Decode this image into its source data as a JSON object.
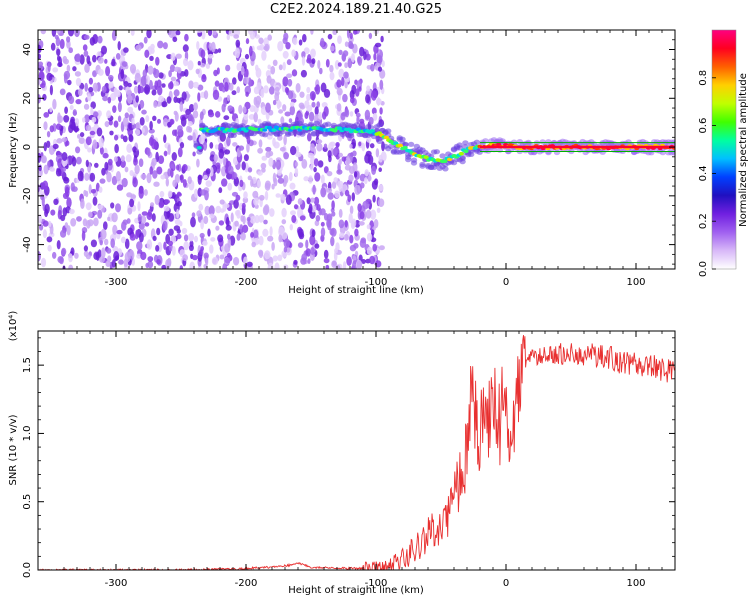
{
  "title": "C2E2.2024.189.21.40.G25",
  "chart_data": [
    {
      "type": "heatmap",
      "xlabel": "Height of straight line (km)",
      "ylabel": "Frequency (Hz)",
      "xlim": [
        -360,
        130
      ],
      "ylim": [
        -50,
        48
      ],
      "xticks": [
        -300,
        -200,
        -100,
        0,
        100
      ],
      "yticks": [
        -40,
        -20,
        0,
        20,
        40
      ],
      "colorbar": {
        "label": "Normalized spectral amplitude",
        "range": [
          0,
          1
        ],
        "ticks": [
          "0.0",
          "0.2",
          "0.4",
          "0.6",
          "0.8"
        ],
        "colors": [
          "#ffffff",
          "#d8b8f8",
          "#a060f0",
          "#7020e0",
          "#2010c0",
          "#0040ff",
          "#00c0ff",
          "#00ffa0",
          "#40ff00",
          "#c0ff00",
          "#ffd000",
          "#ff6000",
          "#ff0020",
          "#ff0080"
        ]
      },
      "ridge": {
        "x": [
          -235,
          -210,
          -180,
          -150,
          -120,
          -100,
          -90,
          -80,
          -70,
          -60,
          -50,
          -40,
          -30,
          -20,
          -10,
          0,
          10,
          30,
          60,
          100,
          130
        ],
        "y": [
          7,
          7,
          7.5,
          7.5,
          7,
          6,
          3,
          0,
          -3,
          -5,
          -6,
          -4,
          -1,
          0,
          1,
          0.5,
          0,
          0,
          0,
          0,
          0
        ]
      },
      "noise_region_end": -100
    },
    {
      "type": "line",
      "xlabel": "Height of straight line (km)",
      "ylabel": "SNR (10 * v/v)",
      "multiplier": "(x10⁴)",
      "xlim": [
        -360,
        130
      ],
      "ylim": [
        0,
        1.75
      ],
      "xticks": [
        -300,
        -200,
        -100,
        0,
        100
      ],
      "yticks": [
        "0.0",
        "0.5",
        "1.0",
        "1.5"
      ],
      "series": [
        {
          "color": "#e83030",
          "x": [
            -360,
            -300,
            -250,
            -200,
            -170,
            -160,
            -150,
            -110,
            -100,
            -90,
            -80,
            -70,
            -60,
            -50,
            -40,
            -35,
            -30,
            -25,
            -20,
            -15,
            -10,
            -5,
            0,
            5,
            10,
            15,
            20,
            30,
            40,
            50,
            60,
            70,
            80,
            90,
            100,
            110,
            120,
            130
          ],
          "y": [
            0.0,
            0.0,
            0.0,
            0.01,
            0.03,
            0.05,
            0.02,
            0.01,
            0.01,
            0.02,
            0.08,
            0.15,
            0.25,
            0.35,
            0.5,
            0.7,
            1.0,
            1.3,
            1.0,
            1.15,
            1.2,
            1.1,
            1.25,
            1.0,
            1.4,
            1.5,
            1.55,
            1.57,
            1.58,
            1.6,
            1.58,
            1.57,
            1.55,
            1.52,
            1.5,
            1.5,
            1.47,
            1.45
          ]
        }
      ]
    }
  ]
}
